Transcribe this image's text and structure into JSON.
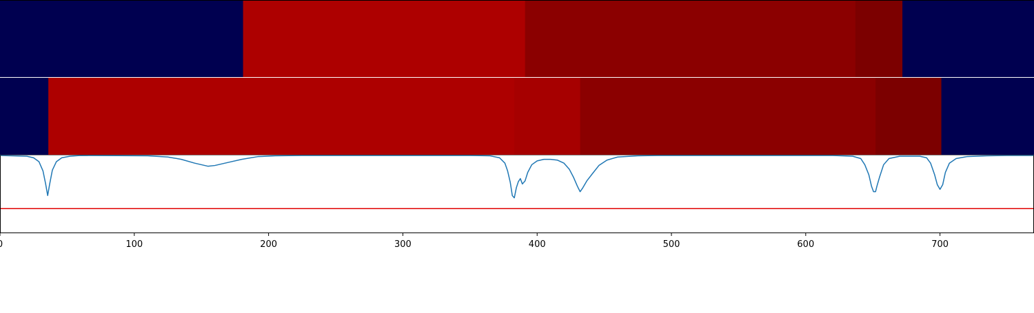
{
  "chart_data": [
    {
      "type": "heatmap",
      "panel": "top-strip",
      "xlim": [
        0,
        770
      ],
      "segments": [
        {
          "x0": 0,
          "x1": 181,
          "color": "#000050"
        },
        {
          "x0": 181,
          "x1": 391,
          "color": "#ad0000"
        },
        {
          "x0": 391,
          "x1": 637,
          "color": "#8b0000"
        },
        {
          "x0": 637,
          "x1": 672,
          "color": "#7c0000"
        },
        {
          "x0": 672,
          "x1": 770,
          "color": "#000050"
        }
      ]
    },
    {
      "type": "heatmap",
      "panel": "middle-strip",
      "xlim": [
        0,
        770
      ],
      "segments": [
        {
          "x0": 0,
          "x1": 36,
          "color": "#000050"
        },
        {
          "x0": 36,
          "x1": 383,
          "color": "#ad0000"
        },
        {
          "x0": 383,
          "x1": 432,
          "color": "#a60000"
        },
        {
          "x0": 432,
          "x1": 652,
          "color": "#8b0000"
        },
        {
          "x0": 652,
          "x1": 701,
          "color": "#7c0000"
        },
        {
          "x0": 701,
          "x1": 770,
          "color": "#000050"
        }
      ]
    },
    {
      "type": "line",
      "panel": "bottom-signal",
      "xlim": [
        0,
        770
      ],
      "ylim": [
        0,
        1
      ],
      "grid": false,
      "xticks": [
        0,
        100,
        200,
        300,
        400,
        500,
        600,
        700
      ],
      "xtick_labels": [
        "0",
        "100",
        "200",
        "300",
        "400",
        "500",
        "600",
        "700"
      ],
      "threshold": {
        "value": 0.31,
        "color": "#e00000"
      },
      "series": [
        {
          "color": "#1f77b4",
          "points": [
            [
              0,
              1.0
            ],
            [
              20,
              0.99
            ],
            [
              25,
              0.97
            ],
            [
              29,
              0.92
            ],
            [
              32,
              0.8
            ],
            [
              34,
              0.63
            ],
            [
              35.5,
              0.48
            ],
            [
              37,
              0.63
            ],
            [
              39,
              0.81
            ],
            [
              42,
              0.92
            ],
            [
              46,
              0.97
            ],
            [
              52,
              0.99
            ],
            [
              60,
              1.0
            ],
            [
              110,
              0.995
            ],
            [
              125,
              0.98
            ],
            [
              135,
              0.95
            ],
            [
              145,
              0.9
            ],
            [
              155,
              0.86
            ],
            [
              160,
              0.87
            ],
            [
              170,
              0.91
            ],
            [
              180,
              0.95
            ],
            [
              192,
              0.985
            ],
            [
              205,
              0.995
            ],
            [
              225,
              1.0
            ],
            [
              350,
              1.0
            ],
            [
              365,
              0.995
            ],
            [
              372,
              0.97
            ],
            [
              376,
              0.9
            ],
            [
              378,
              0.8
            ],
            [
              380,
              0.65
            ],
            [
              381.5,
              0.48
            ],
            [
              383,
              0.45
            ],
            [
              384.5,
              0.58
            ],
            [
              386,
              0.66
            ],
            [
              387.5,
              0.7
            ],
            [
              389,
              0.63
            ],
            [
              391,
              0.67
            ],
            [
              393,
              0.78
            ],
            [
              396,
              0.88
            ],
            [
              400,
              0.93
            ],
            [
              405,
              0.95
            ],
            [
              410,
              0.95
            ],
            [
              415,
              0.94
            ],
            [
              420,
              0.9
            ],
            [
              424,
              0.82
            ],
            [
              427,
              0.72
            ],
            [
              430,
              0.6
            ],
            [
              432,
              0.53
            ],
            [
              434,
              0.58
            ],
            [
              437,
              0.67
            ],
            [
              441,
              0.76
            ],
            [
              446,
              0.87
            ],
            [
              452,
              0.94
            ],
            [
              460,
              0.98
            ],
            [
              475,
              0.995
            ],
            [
              490,
              1.0
            ],
            [
              620,
              1.0
            ],
            [
              635,
              0.99
            ],
            [
              641,
              0.96
            ],
            [
              644,
              0.88
            ],
            [
              647,
              0.75
            ],
            [
              649,
              0.6
            ],
            [
              650.5,
              0.53
            ],
            [
              652,
              0.53
            ],
            [
              653,
              0.6
            ],
            [
              655,
              0.72
            ],
            [
              658,
              0.88
            ],
            [
              662,
              0.96
            ],
            [
              670,
              0.99
            ],
            [
              685,
              0.99
            ],
            [
              690,
              0.97
            ],
            [
              693,
              0.9
            ],
            [
              696,
              0.75
            ],
            [
              698,
              0.62
            ],
            [
              700,
              0.56
            ],
            [
              702,
              0.62
            ],
            [
              704,
              0.78
            ],
            [
              707,
              0.9
            ],
            [
              712,
              0.96
            ],
            [
              720,
              0.985
            ],
            [
              735,
              0.995
            ],
            [
              750,
              1.0
            ],
            [
              770,
              1.0
            ]
          ]
        }
      ]
    }
  ],
  "colors": {
    "separator": "#ffffff",
    "axis": "#000000",
    "line": "#1f77b4",
    "threshold": "#e00000"
  }
}
